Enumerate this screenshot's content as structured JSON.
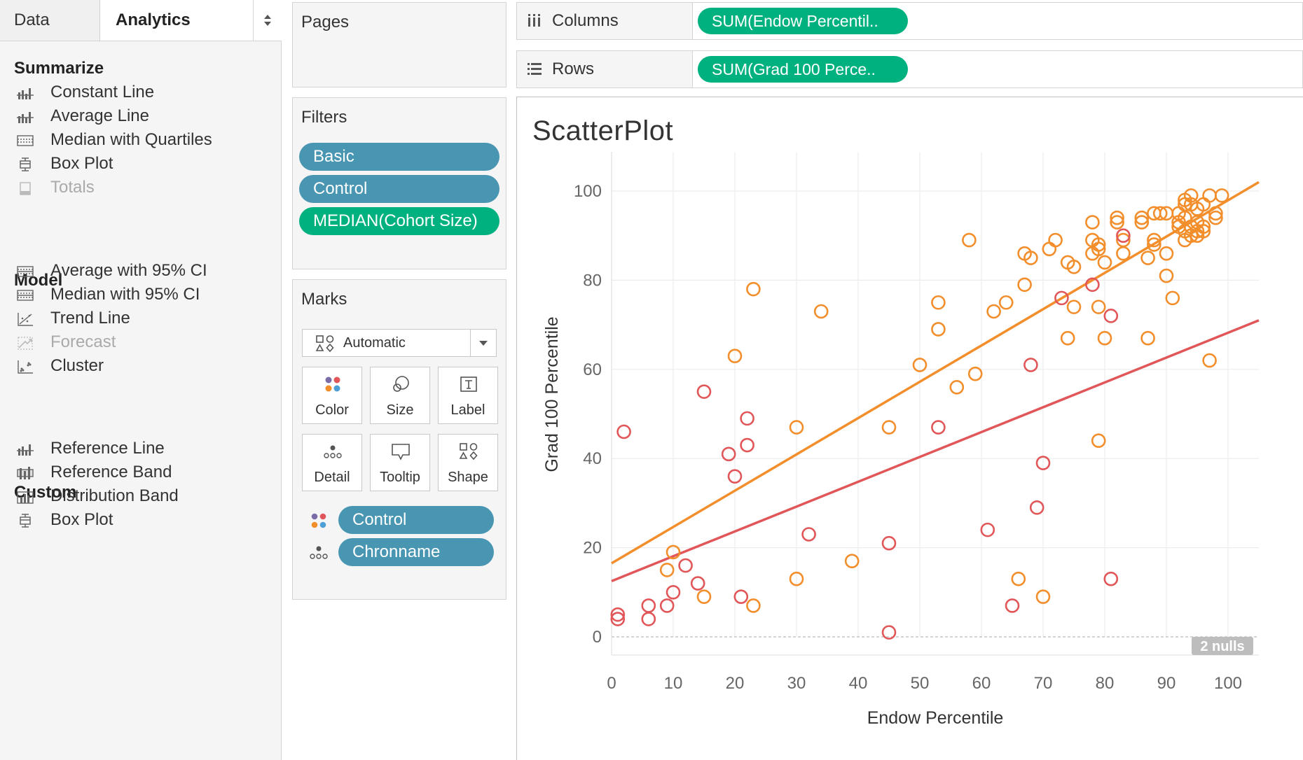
{
  "side_tabs": {
    "data_label": "Data",
    "analytics_label": "Analytics"
  },
  "analytics": {
    "summarize": {
      "title": "Summarize",
      "items": [
        {
          "label": "Constant Line",
          "icon": "constant-line-icon",
          "enabled": true
        },
        {
          "label": "Average Line",
          "icon": "average-line-icon",
          "enabled": true
        },
        {
          "label": "Median with Quartiles",
          "icon": "median-quartiles-icon",
          "enabled": true
        },
        {
          "label": "Box Plot",
          "icon": "box-plot-icon",
          "enabled": true
        },
        {
          "label": "Totals",
          "icon": "totals-icon",
          "enabled": false
        }
      ]
    },
    "model": {
      "title": "Model",
      "items": [
        {
          "label": "Average with 95% CI",
          "icon": "average-ci-icon",
          "enabled": true
        },
        {
          "label": "Median with 95% CI",
          "icon": "median-ci-icon",
          "enabled": true
        },
        {
          "label": "Trend Line",
          "icon": "trend-line-icon",
          "enabled": true
        },
        {
          "label": "Forecast",
          "icon": "forecast-icon",
          "enabled": false
        },
        {
          "label": "Cluster",
          "icon": "cluster-icon",
          "enabled": true
        }
      ]
    },
    "custom": {
      "title": "Custom",
      "items": [
        {
          "label": "Reference Line",
          "icon": "reference-line-icon",
          "enabled": true
        },
        {
          "label": "Reference Band",
          "icon": "reference-band-icon",
          "enabled": true
        },
        {
          "label": "Distribution Band",
          "icon": "distribution-band-icon",
          "enabled": true
        },
        {
          "label": "Box Plot",
          "icon": "box-plot-icon",
          "enabled": true
        }
      ]
    }
  },
  "pages": {
    "title": "Pages"
  },
  "filters": {
    "title": "Filters",
    "pills": [
      {
        "label": "Basic",
        "color": "#4996b2"
      },
      {
        "label": "Control",
        "color": "#4996b2"
      },
      {
        "label": "MEDIAN(Cohort Size)",
        "color": "#00b180"
      }
    ]
  },
  "marks": {
    "title": "Marks",
    "type": "Automatic",
    "buttons": [
      "Color",
      "Size",
      "Label",
      "Detail",
      "Tooltip",
      "Shape"
    ],
    "encodings": [
      {
        "label": "Control",
        "icon": "color-encoding-icon"
      },
      {
        "label": "Chronname",
        "icon": "detail-encoding-icon"
      }
    ]
  },
  "shelves": {
    "columns_label": "Columns",
    "columns_pill": "SUM(Endow Percentil..",
    "rows_label": "Rows",
    "rows_pill": "SUM(Grad 100 Perce.."
  },
  "colors": {
    "accent_blue": "#4996b2",
    "accent_green": "#00b180",
    "series_orange": "#f28e2b",
    "series_red": "#e15759"
  },
  "chart_data": {
    "type": "scatter",
    "title": "ScatterPlot",
    "xlabel": "Endow Percentile",
    "ylabel": "Grad 100 Percentile",
    "xlim": [
      0,
      105
    ],
    "ylim": [
      0,
      100
    ],
    "xticks": [
      0,
      10,
      20,
      30,
      40,
      50,
      60,
      70,
      80,
      90,
      100
    ],
    "yticks": [
      0,
      20,
      40,
      60,
      80,
      100
    ],
    "grid": true,
    "nulls_label": "2 nulls",
    "series": [
      {
        "color": "#f28e2b",
        "trend": [
          [
            0,
            16.5
          ],
          [
            105,
            102
          ]
        ],
        "points": [
          [
            9,
            15
          ],
          [
            10,
            19
          ],
          [
            15,
            9
          ],
          [
            20,
            63
          ],
          [
            23,
            78
          ],
          [
            23,
            7
          ],
          [
            30,
            47
          ],
          [
            30,
            13
          ],
          [
            34,
            73
          ],
          [
            39,
            17
          ],
          [
            45,
            47
          ],
          [
            50,
            61
          ],
          [
            53,
            75
          ],
          [
            53,
            69
          ],
          [
            56,
            56
          ],
          [
            58,
            89
          ],
          [
            59,
            59
          ],
          [
            62,
            73
          ],
          [
            64,
            75
          ],
          [
            66,
            13
          ],
          [
            67,
            79
          ],
          [
            67,
            86
          ],
          [
            68,
            85
          ],
          [
            70,
            9
          ],
          [
            71,
            87
          ],
          [
            72,
            89
          ],
          [
            74,
            67
          ],
          [
            74,
            84
          ],
          [
            75,
            83
          ],
          [
            75,
            74
          ],
          [
            78,
            93
          ],
          [
            78,
            89
          ],
          [
            78,
            86
          ],
          [
            79,
            87
          ],
          [
            79,
            88
          ],
          [
            79,
            74
          ],
          [
            79,
            44
          ],
          [
            80,
            84
          ],
          [
            80,
            67
          ],
          [
            82,
            94
          ],
          [
            82,
            93
          ],
          [
            83,
            89
          ],
          [
            83,
            86
          ],
          [
            86,
            94
          ],
          [
            86,
            93
          ],
          [
            87,
            67
          ],
          [
            87,
            85
          ],
          [
            88,
            95
          ],
          [
            88,
            89
          ],
          [
            88,
            88
          ],
          [
            89,
            95
          ],
          [
            90,
            95
          ],
          [
            90,
            81
          ],
          [
            90,
            86
          ],
          [
            91,
            76
          ],
          [
            92,
            95
          ],
          [
            92,
            93
          ],
          [
            92,
            92
          ],
          [
            93,
            98
          ],
          [
            93,
            97
          ],
          [
            93,
            94
          ],
          [
            93,
            91
          ],
          [
            93,
            89
          ],
          [
            94,
            99
          ],
          [
            94,
            97
          ],
          [
            94,
            92
          ],
          [
            94,
            90
          ],
          [
            95,
            96
          ],
          [
            95,
            93
          ],
          [
            95,
            91
          ],
          [
            95,
            90
          ],
          [
            96,
            97
          ],
          [
            96,
            92
          ],
          [
            96,
            91
          ],
          [
            97,
            99
          ],
          [
            97,
            62
          ],
          [
            98,
            95
          ],
          [
            98,
            94
          ],
          [
            99,
            99
          ]
        ]
      },
      {
        "color": "#e15759",
        "trend": [
          [
            0,
            12.5
          ],
          [
            105,
            71
          ]
        ],
        "points": [
          [
            1,
            5
          ],
          [
            1,
            4
          ],
          [
            2,
            46
          ],
          [
            6,
            7
          ],
          [
            6,
            4
          ],
          [
            9,
            7
          ],
          [
            10,
            10
          ],
          [
            12,
            16
          ],
          [
            14,
            12
          ],
          [
            15,
            55
          ],
          [
            19,
            41
          ],
          [
            20,
            36
          ],
          [
            21,
            9
          ],
          [
            22,
            49
          ],
          [
            22,
            43
          ],
          [
            32,
            23
          ],
          [
            45,
            21
          ],
          [
            45,
            1
          ],
          [
            53,
            47
          ],
          [
            61,
            24
          ],
          [
            65,
            7
          ],
          [
            68,
            61
          ],
          [
            69,
            29
          ],
          [
            70,
            39
          ],
          [
            73,
            76
          ],
          [
            78,
            79
          ],
          [
            81,
            72
          ],
          [
            81,
            13
          ],
          [
            83,
            90
          ]
        ]
      }
    ]
  }
}
